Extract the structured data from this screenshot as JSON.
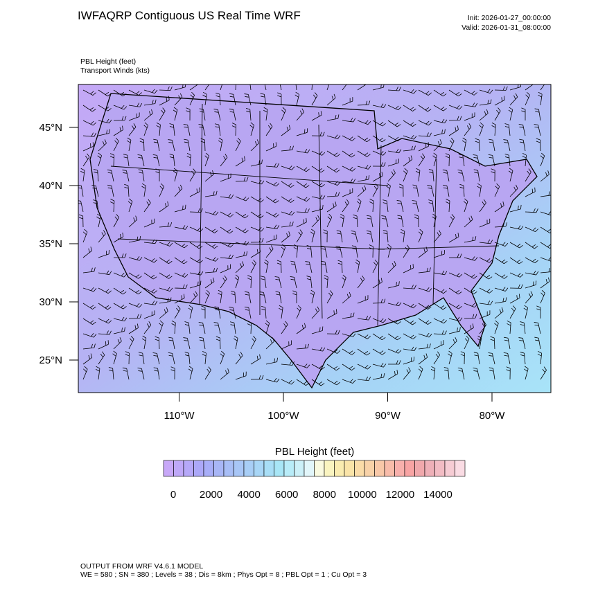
{
  "header": {
    "title": "IWFAQRP Contiguous US Real Time WRF",
    "init": "Init: 2026-01-27_00:00:00",
    "valid": "Valid: 2026-01-31_08:00:00"
  },
  "fields": [
    "PBL Height   (feet)",
    "Transport Winds   (kts)"
  ],
  "lat_ticks": [
    {
      "value": 45,
      "label": "45°N"
    },
    {
      "value": 40,
      "label": "40°N"
    },
    {
      "value": 35,
      "label": "35°N"
    },
    {
      "value": 30,
      "label": "30°N"
    },
    {
      "value": 25,
      "label": "25°N"
    }
  ],
  "lon_ticks": [
    {
      "value": -110,
      "label": "110°W"
    },
    {
      "value": -100,
      "label": "100°W"
    },
    {
      "value": -90,
      "label": "90°W"
    },
    {
      "value": -80,
      "label": "80°W"
    }
  ],
  "colorbar": {
    "title": "PBL Height  (feet)",
    "colors": [
      "#c8a8f8",
      "#bfa8f8",
      "#b6a8f8",
      "#aca8f8",
      "#a8aef8",
      "#a8b6f6",
      "#a8bef6",
      "#a8c6f6",
      "#a8cef6",
      "#a8d6f6",
      "#a8def6",
      "#a8e6f6",
      "#b8ecf8",
      "#ccf0f8",
      "#e2f6fa",
      "#fafae0",
      "#faf4c0",
      "#faecb0",
      "#fae4a8",
      "#fadca8",
      "#f8d2a8",
      "#f8c8a8",
      "#f8bcaa",
      "#f8b0ac",
      "#f8a4a4",
      "#f0a8ac",
      "#eeb0b8",
      "#f2bcc4",
      "#f6ccd4",
      "#fadce4"
    ],
    "labels": [
      0,
      2000,
      4000,
      6000,
      8000,
      10000,
      12000,
      14000
    ]
  },
  "footer": [
    "OUTPUT FROM WRF V4.6.1 MODEL",
    "WE = 580 ; SN = 380 ; Levels = 38 ; Dis = 8km ; Phys Opt = 8 ; PBL Opt = 1 ; Cu Opt = 3"
  ]
}
